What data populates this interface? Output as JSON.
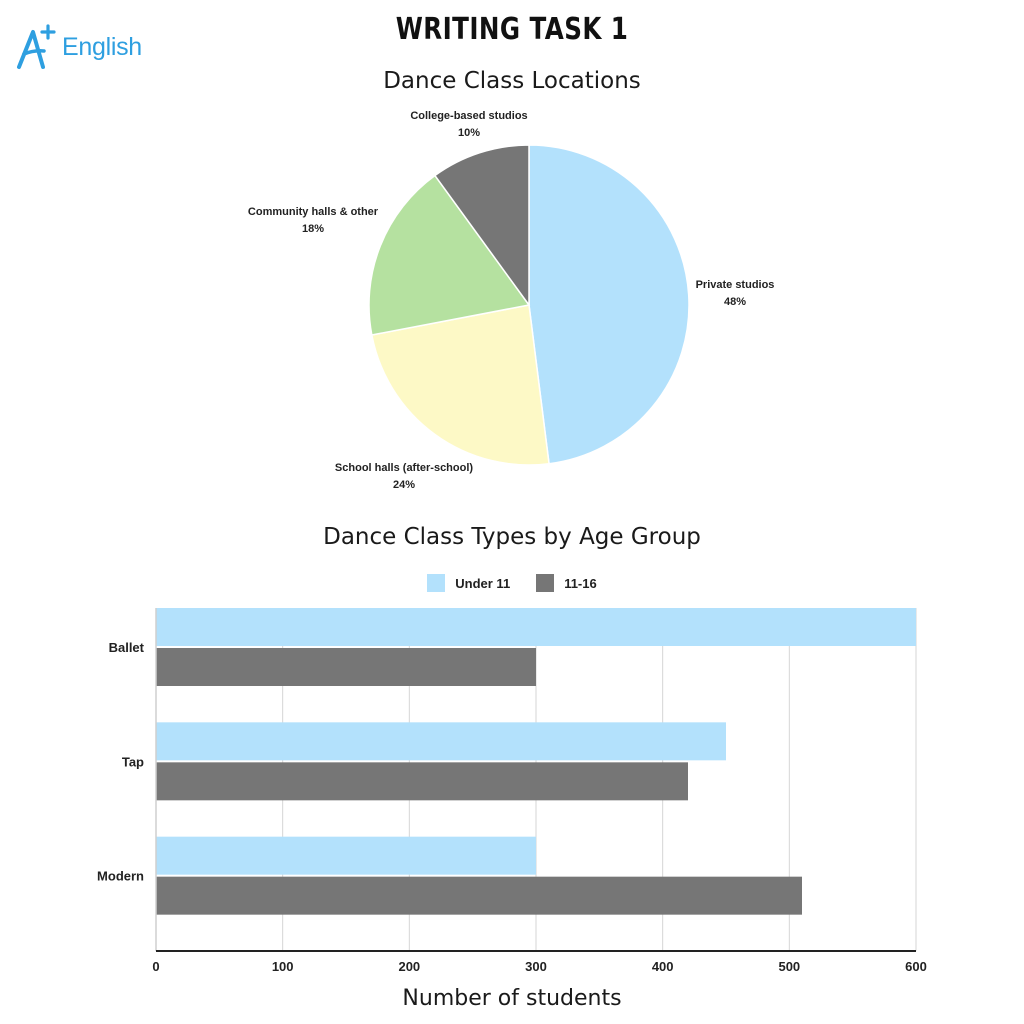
{
  "header": {
    "logo_text": "English",
    "title": "WRITING TASK 1"
  },
  "colors": {
    "light_blue": "#b3e1fc",
    "dark_gray": "#767676",
    "light_green": "#b5e1a0",
    "light_yellow": "#fdf9c6",
    "logo_blue": "#2e9fe0",
    "grid": "#d6d6d6"
  },
  "chart_data": [
    {
      "type": "pie",
      "title": "Dance Class Locations",
      "slices": [
        {
          "label": "Private studios",
          "value": 48,
          "display": "48%",
          "color": "#b3e1fc"
        },
        {
          "label": "School halls (after-school)",
          "value": 24,
          "display": "24%",
          "color": "#fdf9c6"
        },
        {
          "label": "Community halls & other",
          "value": 18,
          "display": "18%",
          "color": "#b5e1a0"
        },
        {
          "label": "College-based studios",
          "value": 10,
          "display": "10%",
          "color": "#767676"
        }
      ],
      "start": "12 o'clock, clockwise"
    },
    {
      "type": "bar",
      "orientation": "horizontal",
      "title": "Dance Class Types by Age Group",
      "categories": [
        "Ballet",
        "Tap",
        "Modern"
      ],
      "series": [
        {
          "name": "Under 11",
          "values": [
            600,
            450,
            300
          ],
          "color": "#b3e1fc"
        },
        {
          "name": "11-16",
          "values": [
            300,
            420,
            510
          ],
          "color": "#767676"
        }
      ],
      "xlabel": "Number of students",
      "ylabel": "",
      "xlim": [
        0,
        600
      ],
      "xticks": [
        "0",
        "100",
        "200",
        "300",
        "400",
        "500",
        "600"
      ],
      "grid": true,
      "legend": "top"
    }
  ]
}
